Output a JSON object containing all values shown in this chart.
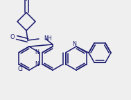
{
  "bg_color": "#efefef",
  "line_color": "#1a1a6e",
  "lw": 1.1,
  "figsize": [
    1.89,
    1.44
  ],
  "dpi": 100,
  "xlim": [
    0,
    189
  ],
  "ylim": [
    0,
    144
  ]
}
